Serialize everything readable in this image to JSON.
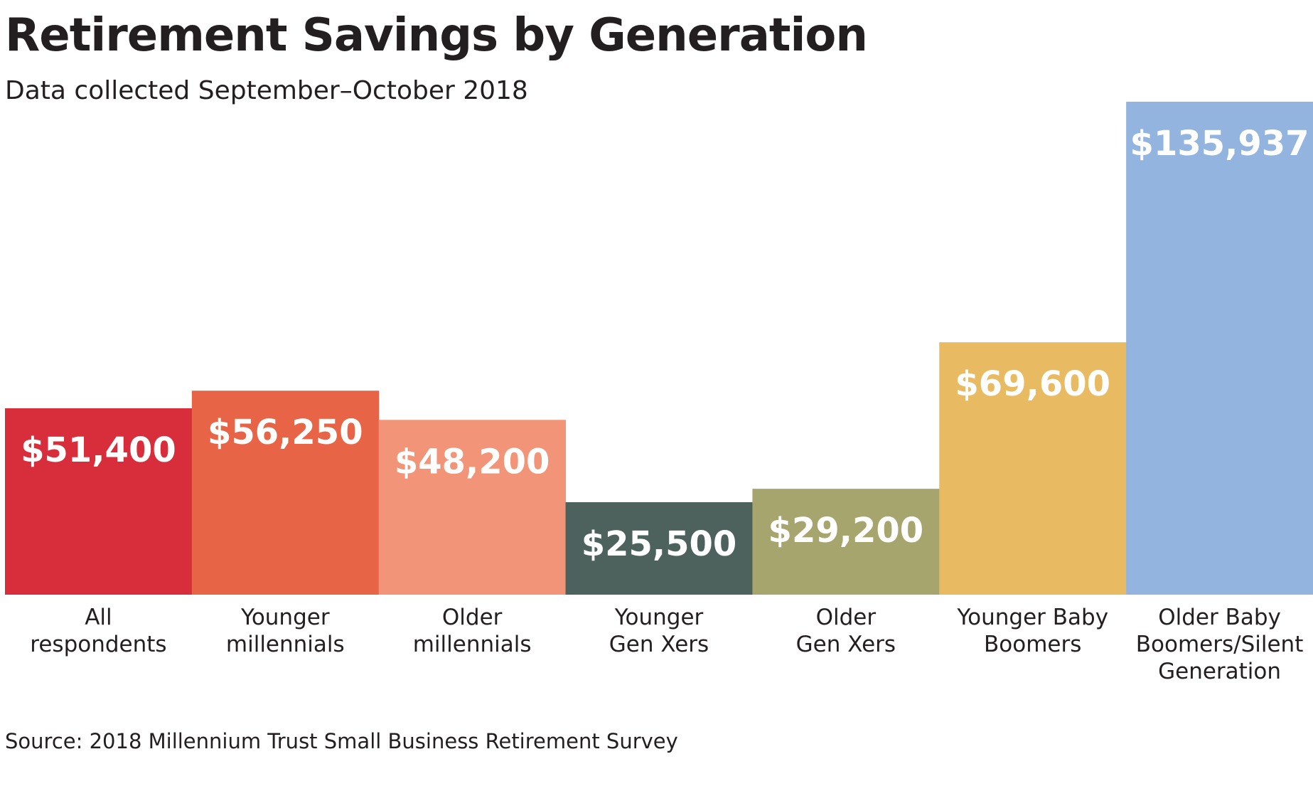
{
  "title": "Retirement Savings by Generation",
  "subtitle": "Data collected September–October 2018",
  "source": "Source: 2018 Millennium Trust Small Business Retirement Survey",
  "chart_data": {
    "type": "bar",
    "categories": [
      [
        "All",
        "respondents"
      ],
      [
        "Younger",
        "millennials"
      ],
      [
        "Older",
        "millennials"
      ],
      [
        "Younger",
        "Gen Xers"
      ],
      [
        "Older",
        "Gen Xers"
      ],
      [
        "Younger Baby",
        "Boomers"
      ],
      [
        "Older Baby",
        "Boomers/Silent",
        "Generation"
      ]
    ],
    "values": [
      51400,
      56250,
      48200,
      25500,
      29200,
      69600,
      135937
    ],
    "value_labels": [
      "$51,400",
      "$56,250",
      "$48,200",
      "$25,500",
      "$29,200",
      "$69,600",
      "$135,937"
    ],
    "colors": [
      "#d82e3b",
      "#e86446",
      "#f19478",
      "#4d625d",
      "#a6a56d",
      "#e8bb62",
      "#93b4de"
    ],
    "ylim": [
      0,
      135937
    ],
    "grid": false,
    "legend": "none"
  }
}
